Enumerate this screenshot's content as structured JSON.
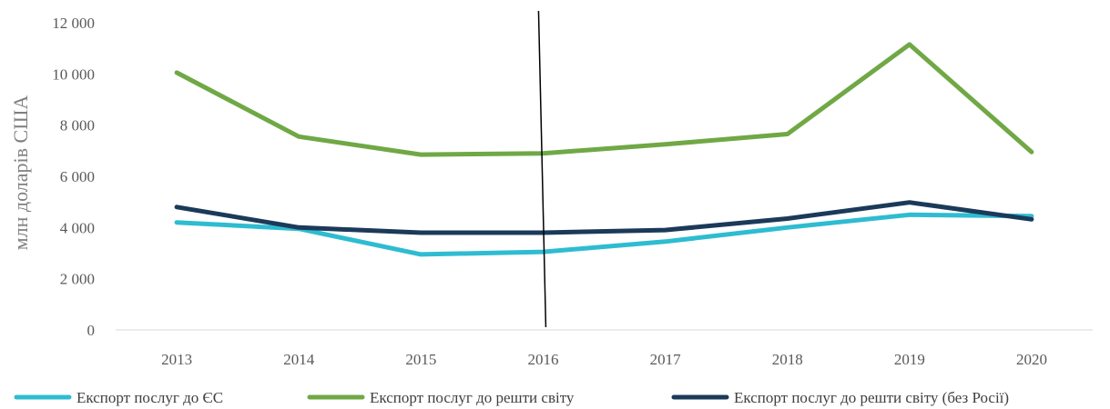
{
  "chart_data": {
    "type": "line",
    "categories": [
      "2013",
      "2014",
      "2015",
      "2016",
      "2017",
      "2018",
      "2019",
      "2020"
    ],
    "ylabel": "млн доларів США",
    "xlabel": "",
    "ylim": [
      0,
      12000
    ],
    "yticks": [
      0,
      2000,
      4000,
      6000,
      8000,
      10000,
      12000
    ],
    "ytick_labels": [
      "0",
      "2 000",
      "4 000",
      "6 000",
      "8 000",
      "10 000",
      "12 000"
    ],
    "grid": false,
    "legend": "bottom",
    "marker_line_at": "2016",
    "series": [
      {
        "name": "Експорт послуг до ЄС",
        "color": "#2ebcd1",
        "values": [
          4200,
          3950,
          2950,
          3050,
          3450,
          4000,
          4500,
          4450
        ]
      },
      {
        "name": "Експорт послуг до решти світу",
        "color": "#70a845",
        "values": [
          10050,
          7550,
          6850,
          6900,
          7250,
          7650,
          11150,
          6950
        ]
      },
      {
        "name": "Експорт послуг до решти світу (без Росії)",
        "color": "#1b3a5a",
        "values": [
          4800,
          4000,
          3800,
          3800,
          3900,
          4350,
          4980,
          4320
        ]
      }
    ]
  }
}
